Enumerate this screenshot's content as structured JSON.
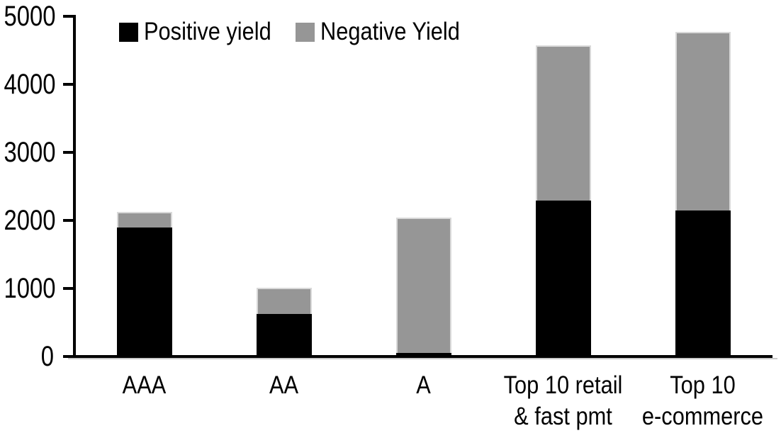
{
  "chart_data": {
    "type": "bar",
    "stacked": true,
    "title": "",
    "categories": [
      [
        "AAA"
      ],
      [
        "AA"
      ],
      [
        "A"
      ],
      [
        "Top 10 retail",
        "& fast pmt"
      ],
      [
        "Top 10",
        "e-commerce"
      ]
    ],
    "series": [
      {
        "name": "Positive yield",
        "color": "#000000",
        "values": [
          1900,
          630,
          50,
          2290,
          2150
        ]
      },
      {
        "name": "Negative Yield",
        "color": "#969696",
        "values": [
          230,
          380,
          1990,
          2280,
          2620
        ]
      }
    ],
    "totals": [
      2130,
      1010,
      2040,
      4570,
      4770
    ],
    "ylim": [
      0,
      5000
    ],
    "yticks": [
      0,
      1000,
      2000,
      3000,
      4000,
      5000
    ],
    "legend_position": "top",
    "grid": false,
    "axis_color": "#000000",
    "gray_bar_outline_color": "#d9d9d9"
  }
}
